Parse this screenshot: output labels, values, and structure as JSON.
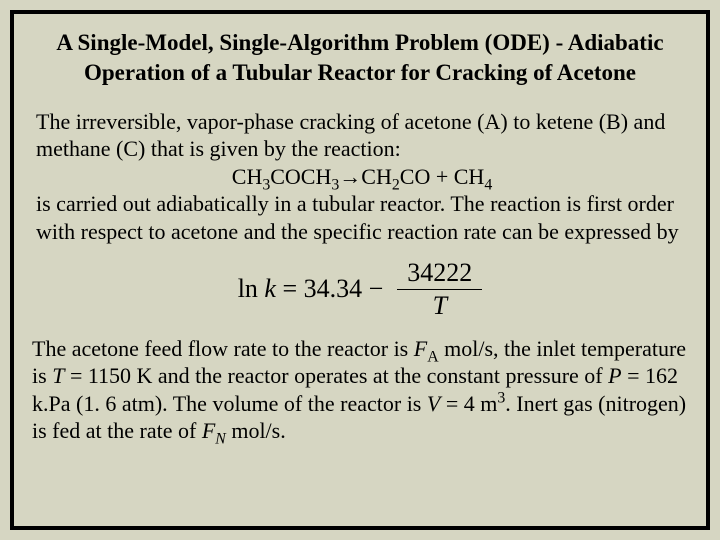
{
  "title": "A Single-Model, Single-Algorithm Problem (ODE) - Adiabatic Operation of a Tubular Reactor for Cracking of Acetone",
  "p1a": "The irreversible, vapor-phase cracking of acetone (A) to ketene (B) and methane (C) that is given by the reaction:",
  "reaction": {
    "lhs": "CH",
    "s3a": "3",
    "coc": "COCH",
    "s3b": "3",
    "arrow": "→CH",
    "s2a": "2",
    "co": "CO + CH",
    "s4": "4"
  },
  "p1b": "is carried out adiabatically in a tubular reactor.  The reaction is first order with respect to acetone and the specific reaction rate can be expressed by",
  "eq": {
    "ln": "ln",
    "k": "k",
    "eq": " = 34.34 − ",
    "num": "34222",
    "den": "T"
  },
  "p2": {
    "t1": "The acetone feed flow rate to the reactor is ",
    "FA": "F",
    "Asub": "A",
    "t2": " mol/s, the inlet temperature is ",
    "T": "T",
    "t3": " = 1150 K and the reactor operates at the constant pressure of ",
    "P": "P",
    "t4": " = 162 k.Pa (1. 6 atm). The volume of the reactor is ",
    "V": "V",
    "t5": " = 4 m",
    "cube": "3",
    "t6": ". Inert gas (nitrogen) is fed at the rate of ",
    "FN": "F",
    "Nsub": "N",
    "t7": " mol/s."
  }
}
